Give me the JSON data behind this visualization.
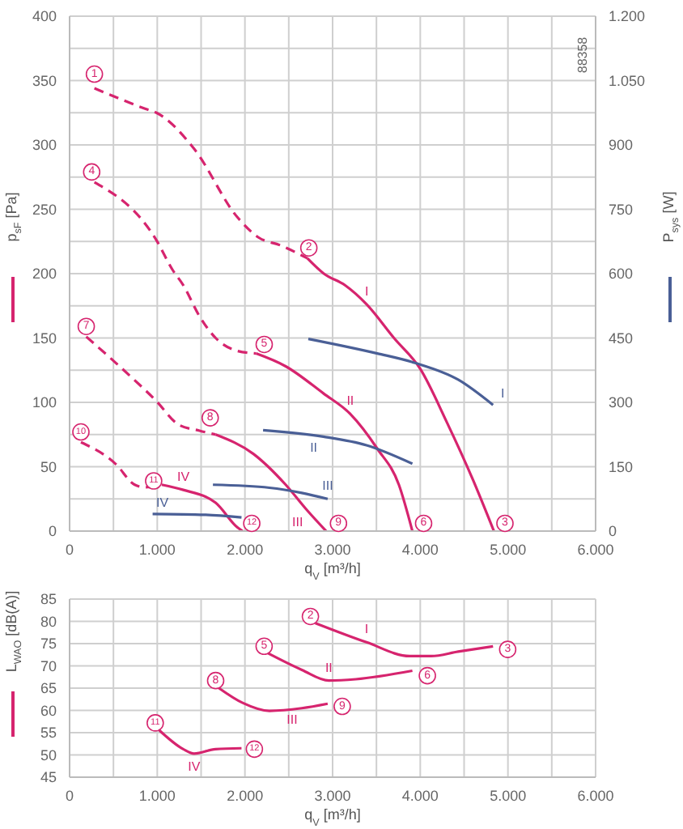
{
  "chart_data": [
    {
      "type": "line",
      "xlabel": "q$_{V}$ [m³/h]",
      "ylabel": "p$_{sF}$ [Pa]",
      "y2label": "P$_{sys}$ [W]",
      "grid": true,
      "marker": "none",
      "xlim": [
        0,
        6000
      ],
      "xticks": [
        0,
        {
          "value": 500,
          "label": null
        },
        {
          "value": 1000,
          "label": "1.000"
        },
        {
          "value": 1500,
          "label": null
        },
        {
          "value": 2000,
          "label": "2.000"
        },
        {
          "value": 2500,
          "label": null
        },
        {
          "value": 3000,
          "label": "3.000"
        },
        {
          "value": 3500,
          "label": null
        },
        {
          "value": 4000,
          "label": "4.000"
        },
        {
          "value": 4500,
          "label": null
        },
        {
          "value": 5000,
          "label": "5.000"
        },
        {
          "value": 5500,
          "label": null
        },
        {
          "value": 6000,
          "label": "6.000"
        }
      ],
      "ylim": [
        0,
        400
      ],
      "yticks": [
        0,
        {
          "value": 25,
          "label": null
        },
        50,
        {
          "value": 75,
          "label": null
        },
        100,
        {
          "value": 125,
          "label": null
        },
        150,
        {
          "value": 175,
          "label": null
        },
        200,
        {
          "value": 225,
          "label": null
        },
        250,
        {
          "value": 275,
          "label": null
        },
        300,
        {
          "value": 325,
          "label": null
        },
        350,
        {
          "value": 375,
          "label": null
        },
        400
      ],
      "y2lim": [
        0,
        1200
      ],
      "y2ticks": [
        0,
        150,
        300,
        450,
        600,
        750,
        900,
        {
          "value": 1050,
          "label": "1.050"
        },
        {
          "value": 1200,
          "label": "1.200"
        }
      ],
      "series": [
        {
          "color": "#d6246e",
          "line_style": "dashed",
          "x": [
            283,
            867,
            990,
            1420,
            1912,
            2158,
            2404,
            2711
          ],
          "values": [
            344,
            328,
            325,
            297,
            244,
            228,
            222,
            212
          ]
        },
        {
          "name": "I",
          "color": "#d6246e",
          "line_style": "solid",
          "x": [
            2711,
            2900,
            3141,
            3390,
            3700,
            4000,
            4300,
            4600,
            4840
          ],
          "values": [
            212,
            200,
            191,
            176,
            150,
            126,
            85,
            40,
            0
          ]
        },
        {
          "color": "#d6246e",
          "line_style": "dashed",
          "x": [
            283,
            990,
            1174,
            1297,
            1481,
            1666,
            1912,
            2127
          ],
          "values": [
            271,
            226,
            203,
            191,
            167,
            150,
            140,
            138
          ]
        },
        {
          "name": "II",
          "color": "#d6246e",
          "line_style": "solid",
          "x": [
            2127,
            2465,
            2895,
            3202,
            3510,
            3756,
            3910
          ],
          "values": [
            138,
            128,
            107,
            91,
            64,
            36,
            0
          ]
        },
        {
          "color": "#d6246e",
          "line_style": "dashed",
          "x": [
            190,
            682,
            990,
            1236,
            1481,
            1666
          ],
          "values": [
            151,
            121,
            101,
            83,
            78,
            75
          ]
        },
        {
          "name": "III",
          "color": "#d6246e",
          "line_style": "solid",
          "x": [
            1666,
            2096,
            2465,
            2711,
            2926
          ],
          "values": [
            75,
            60,
            36,
            16,
            0
          ]
        },
        {
          "color": "#d6246e",
          "line_style": "dashed",
          "x": [
            129,
            528,
            743,
            866,
            1051
          ],
          "values": [
            69,
            52,
            36,
            34,
            36
          ]
        },
        {
          "name": "IV",
          "color": "#d6246e",
          "line_style": "solid",
          "x": [
            1051,
            1297,
            1666,
            1912,
            1973
          ],
          "values": [
            36,
            32,
            22,
            3,
            0
          ]
        },
        {
          "name": "I",
          "color": "#4a5f96",
          "line_style": "solid",
          "axis": "y2",
          "x": [
            2723,
            3510,
            3940,
            4432,
            4830
          ],
          "values": [
            448,
            414,
            392,
            353,
            294
          ]
        },
        {
          "name": "II",
          "color": "#4a5f96",
          "line_style": "solid",
          "axis": "y2",
          "x": [
            2207,
            2895,
            3387,
            3910
          ],
          "values": [
            235,
            220,
            200,
            157
          ]
        },
        {
          "name": "III",
          "color": "#4a5f96",
          "line_style": "solid",
          "axis": "y2",
          "x": [
            1635,
            2280,
            2649,
            2944
          ],
          "values": [
            108,
            101,
            89,
            75
          ]
        },
        {
          "name": "IV",
          "color": "#4a5f96",
          "line_style": "solid",
          "axis": "y2",
          "x": [
            947,
            1543,
            1961
          ],
          "values": [
            40,
            38,
            32
          ]
        }
      ],
      "annotations": [
        {
          "text": "1",
          "x": 283,
          "y": 355
        },
        {
          "text": "2",
          "x": 2729,
          "y": 220
        },
        {
          "text": "3",
          "x": 4966,
          "y": 6
        },
        {
          "text": "4",
          "x": 252,
          "y": 279
        },
        {
          "text": "5",
          "x": 2220,
          "y": 145
        },
        {
          "text": "6",
          "x": 4038,
          "y": 6
        },
        {
          "text": "7",
          "x": 190,
          "y": 159
        },
        {
          "text": "8",
          "x": 1604,
          "y": 88
        },
        {
          "text": "9",
          "x": 3067,
          "y": 6
        },
        {
          "text": "10",
          "x": 129,
          "y": 77
        },
        {
          "text": "11",
          "x": 959,
          "y": 39
        },
        {
          "text": "12",
          "x": 2078,
          "y": 6
        },
        "88358"
      ]
    },
    {
      "type": "line",
      "xlabel": "q$_{V}$ [m³/h]",
      "ylabel": "L$_{WAO}$ [dB(A)]",
      "grid": true,
      "marker": "none",
      "xlim": [
        0,
        6000
      ],
      "xticks": [
        0,
        {
          "value": 500,
          "label": null
        },
        {
          "value": 1000,
          "label": "1.000"
        },
        {
          "value": 1500,
          "label": null
        },
        {
          "value": 2000,
          "label": "2.000"
        },
        {
          "value": 2500,
          "label": null
        },
        {
          "value": 3000,
          "label": "3.000"
        },
        {
          "value": 3500,
          "label": null
        },
        {
          "value": 4000,
          "label": "4.000"
        },
        {
          "value": 4500,
          "label": null
        },
        {
          "value": 5000,
          "label": "5.000"
        },
        {
          "value": 5500,
          "label": null
        },
        {
          "value": 6000,
          "label": "6.000"
        }
      ],
      "ylim": [
        45,
        85
      ],
      "yticks": [
        45,
        50,
        55,
        60,
        65,
        70,
        75,
        80,
        85
      ],
      "series": [
        {
          "name": "I",
          "color": "#d6246e",
          "line_style": "solid",
          "x": [
            2803,
            3387,
            3879,
            4124,
            4432,
            4830
          ],
          "values": [
            79.6,
            75.3,
            72.2,
            72.2,
            73.2,
            74.4
          ]
        },
        {
          "name": "II",
          "color": "#d6246e",
          "line_style": "solid",
          "x": [
            2237,
            2649,
            2957,
            3264,
            3910
          ],
          "values": [
            73.1,
            69.1,
            66.7,
            67,
            68.9
          ]
        },
        {
          "name": "III",
          "color": "#d6246e",
          "line_style": "solid",
          "x": [
            1697,
            1973,
            2280,
            2649,
            2944
          ],
          "values": [
            65.1,
            61.7,
            59.9,
            60.5,
            61.5
          ]
        },
        {
          "name": "IV",
          "color": "#d6246e",
          "line_style": "solid",
          "x": [
            1020,
            1297,
            1420,
            1666,
            1961
          ],
          "values": [
            55.6,
            51.3,
            50.3,
            51.3,
            51.5
          ]
        }
      ],
      "annotations": [
        {
          "text": "2",
          "x": 2747,
          "y": 81.1
        },
        {
          "text": "3",
          "x": 4997,
          "y": 73.7
        },
        {
          "text": "5",
          "x": 2219,
          "y": 74.4
        },
        {
          "text": "6",
          "x": 4081,
          "y": 67.8
        },
        {
          "text": "8",
          "x": 1666,
          "y": 66.7
        },
        {
          "text": "9",
          "x": 3110,
          "y": 60.9
        },
        {
          "text": "11",
          "x": 977,
          "y": 57.2
        },
        {
          "text": "12",
          "x": 2108,
          "y": 51.3
        }
      ]
    }
  ]
}
